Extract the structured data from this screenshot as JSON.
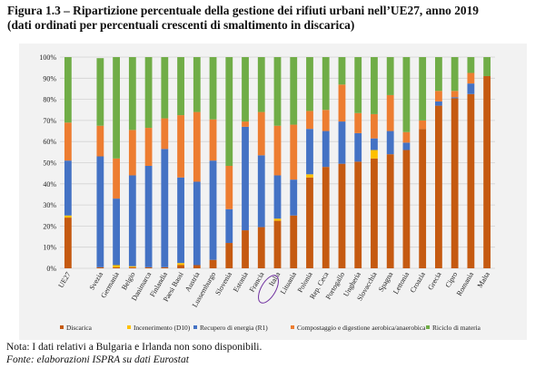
{
  "figure": {
    "title_line1": "Figura 1.3 – Ripartizione percentuale della gestione dei rifiuti urbani nell’UE27, anno 2019",
    "title_line2": "(dati ordinati per percentuali crescenti di smaltimento in discarica)"
  },
  "note": "Nota: I dati relativi a Bulgaria e Irlanda non sono disponibili.",
  "source": "Fonte: elaborazioni ISPRA su dati Eurostat",
  "chart_data": {
    "type": "bar",
    "stacked": true,
    "title": "Ripartizione percentuale della gestione dei rifiuti urbani nell’UE27, anno 2019",
    "ylim": [
      0,
      100
    ],
    "yticks": [
      "0%",
      "10%",
      "20%",
      "30%",
      "40%",
      "50%",
      "60%",
      "70%",
      "80%",
      "90%",
      "100%"
    ],
    "grid": true,
    "legend_position": "bottom",
    "highlighted_category": "Italia",
    "categories": [
      "UE27",
      "",
      "Svezia",
      "Germania",
      "Belgio",
      "Danimarca",
      "Finlandia",
      "Paesi Bassi",
      "Austria",
      "Lussemburgo",
      "Slovenia",
      "Estonia",
      "Francia",
      "Italia",
      "Lituania",
      "Polonia",
      "Rep. Ceca",
      "Portogallo",
      "Ungheria",
      "Slovacchia",
      "Spagna",
      "Lettonia",
      "Croazia",
      "Grecia",
      "Cipro",
      "Romania",
      "Malta"
    ],
    "series": [
      {
        "name": "Discarica",
        "color": "#c55a11",
        "values": [
          24,
          null,
          0.5,
          0.5,
          0.5,
          0.5,
          0.5,
          1.5,
          1.5,
          4,
          12,
          18,
          19.5,
          22.5,
          25,
          43,
          48,
          49.5,
          50.5,
          52,
          54,
          56,
          66,
          77,
          80.5,
          82.5,
          91
        ]
      },
      {
        "name": "Incenerimento (D10)",
        "color": "#ffc000",
        "values": [
          1,
          null,
          0,
          1,
          0.5,
          0,
          0,
          1,
          0,
          0,
          0,
          0,
          0,
          1,
          0,
          1.5,
          0,
          0,
          0,
          4,
          0,
          0,
          0,
          0,
          0,
          0,
          0
        ]
      },
      {
        "name": "Recupero di energia (R1)",
        "color": "#4472c4",
        "values": [
          26,
          null,
          52.5,
          31.5,
          43,
          48,
          56,
          40.5,
          39.5,
          47,
          16,
          49,
          34,
          20.5,
          17,
          21.5,
          17,
          20,
          13.5,
          5.5,
          11,
          3.5,
          0,
          2,
          0.5,
          5,
          0
        ]
      },
      {
        "name": "Compostaggio e digestione aerobica/anaerobica",
        "color": "#ed7d31",
        "values": [
          18,
          null,
          14.5,
          19,
          21.5,
          18,
          14.5,
          29.5,
          33,
          19.5,
          20.5,
          2.5,
          20.5,
          23.5,
          26,
          8.5,
          10,
          17.5,
          9.5,
          11.5,
          17,
          5,
          4,
          5,
          3,
          5,
          0
        ]
      },
      {
        "name": "Riciclo di materia",
        "color": "#70ad47",
        "values": [
          31,
          null,
          32,
          48,
          34.5,
          33.5,
          29,
          27.5,
          26,
          29.5,
          51.5,
          30.5,
          26,
          32.5,
          32,
          25.5,
          25,
          13,
          26.5,
          27,
          18,
          35.5,
          30,
          16,
          16,
          7.5,
          9
        ]
      }
    ]
  }
}
